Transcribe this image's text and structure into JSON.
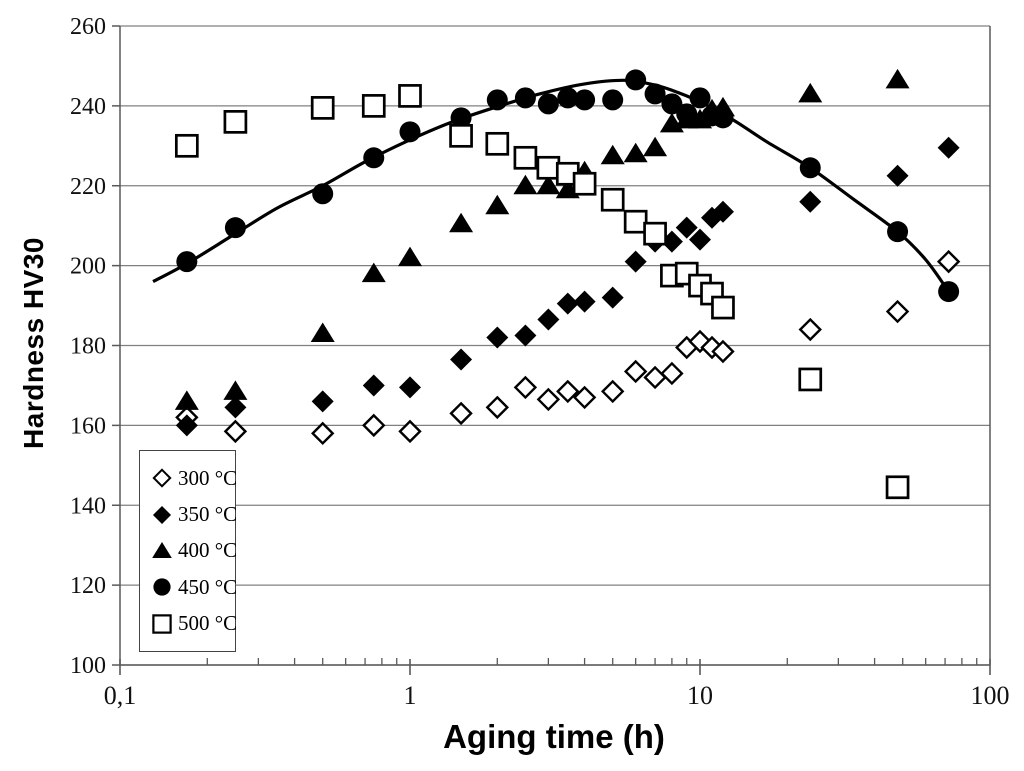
{
  "chart_data": {
    "type": "scatter",
    "title": "",
    "xlabel": "Aging time (h)",
    "ylabel": "Hardness HV30",
    "x_scale": "log",
    "x_range": [
      0.1,
      100
    ],
    "x_tick_values": [
      0.1,
      1,
      10,
      100
    ],
    "x_tick_labels": [
      "0,1",
      "1",
      "10",
      "100"
    ],
    "y_range": [
      100,
      260
    ],
    "y_tick_values": [
      100,
      120,
      140,
      160,
      180,
      200,
      220,
      240,
      260
    ],
    "y_tick_labels": [
      "100",
      "120",
      "140",
      "160",
      "180",
      "200",
      "220",
      "240",
      "260"
    ],
    "grid": "horizontal-only",
    "legend_position": "lower-left",
    "colors": {
      "marker": "#000000",
      "grid": "#808080",
      "axis": "#595959",
      "curve": "#000000",
      "background": "#ffffff"
    },
    "series": [
      {
        "name": "300 °C",
        "marker": "diamond-open",
        "points": [
          [
            0.17,
            162
          ],
          [
            0.25,
            158.5
          ],
          [
            0.5,
            158
          ],
          [
            0.75,
            160
          ],
          [
            1,
            158.5
          ],
          [
            1.5,
            163
          ],
          [
            2,
            164.5
          ],
          [
            2.5,
            169.5
          ],
          [
            3,
            166.5
          ],
          [
            3.5,
            168.5
          ],
          [
            4,
            167
          ],
          [
            5,
            168.5
          ],
          [
            6,
            173.5
          ],
          [
            7,
            172
          ],
          [
            8,
            173
          ],
          [
            9,
            179.5
          ],
          [
            10,
            181
          ],
          [
            11,
            179.5
          ],
          [
            12,
            178.5
          ],
          [
            24,
            184
          ],
          [
            48,
            188.5
          ],
          [
            72,
            201
          ]
        ]
      },
      {
        "name": "350 °C",
        "marker": "diamond-filled",
        "points": [
          [
            0.17,
            160
          ],
          [
            0.25,
            164.5
          ],
          [
            0.5,
            166
          ],
          [
            0.75,
            170
          ],
          [
            1,
            169.5
          ],
          [
            1.5,
            176.5
          ],
          [
            2,
            182
          ],
          [
            2.5,
            182.5
          ],
          [
            3,
            186.5
          ],
          [
            3.5,
            190.5
          ],
          [
            4,
            191
          ],
          [
            5,
            192
          ],
          [
            6,
            201
          ],
          [
            7,
            206
          ],
          [
            8,
            206
          ],
          [
            9,
            209.5
          ],
          [
            10,
            206.5
          ],
          [
            11,
            212
          ],
          [
            12,
            213.5
          ],
          [
            24,
            216
          ],
          [
            48,
            222.5
          ],
          [
            72,
            229.5
          ]
        ]
      },
      {
        "name": "400 °C",
        "marker": "triangle-filled",
        "points": [
          [
            0.17,
            166
          ],
          [
            0.25,
            168.5
          ],
          [
            0.5,
            183
          ],
          [
            0.75,
            198
          ],
          [
            1,
            202
          ],
          [
            1.5,
            210.5
          ],
          [
            2,
            215
          ],
          [
            2.5,
            220
          ],
          [
            3,
            220
          ],
          [
            3.5,
            219
          ],
          [
            4,
            223.5
          ],
          [
            5,
            227.5
          ],
          [
            6,
            228
          ],
          [
            7,
            229.5
          ],
          [
            8,
            235.5
          ],
          [
            9,
            236.5
          ],
          [
            10,
            236.5
          ],
          [
            11,
            239
          ],
          [
            12,
            239.5
          ],
          [
            24,
            243
          ],
          [
            48,
            246.5
          ]
        ]
      },
      {
        "name": "450 °C",
        "marker": "circle-filled",
        "points": [
          [
            0.17,
            201
          ],
          [
            0.25,
            209.5
          ],
          [
            0.5,
            218
          ],
          [
            0.75,
            227
          ],
          [
            1,
            233.5
          ],
          [
            1.5,
            237
          ],
          [
            2,
            241.5
          ],
          [
            2.5,
            242
          ],
          [
            3,
            240.5
          ],
          [
            3.5,
            242
          ],
          [
            4,
            241.5
          ],
          [
            5,
            241.5
          ],
          [
            6,
            246.5
          ],
          [
            7,
            243
          ],
          [
            8,
            240.5
          ],
          [
            9,
            238
          ],
          [
            10,
            242
          ],
          [
            11,
            237.5
          ],
          [
            12,
            237
          ],
          [
            24,
            224.5
          ],
          [
            48,
            208.5
          ],
          [
            72,
            193.5
          ]
        ]
      },
      {
        "name": "500 °C",
        "marker": "square-open",
        "points": [
          [
            0.17,
            230
          ],
          [
            0.25,
            236
          ],
          [
            0.5,
            239.5
          ],
          [
            0.75,
            240
          ],
          [
            1,
            242.5
          ],
          [
            1.5,
            232.5
          ],
          [
            2,
            230.5
          ],
          [
            2.5,
            227
          ],
          [
            3,
            224.5
          ],
          [
            3.5,
            223
          ],
          [
            4,
            220.5
          ],
          [
            5,
            216.5
          ],
          [
            6,
            211
          ],
          [
            7,
            208
          ],
          [
            8,
            197.5
          ],
          [
            9,
            198
          ],
          [
            10,
            195
          ],
          [
            11,
            193
          ],
          [
            12,
            189.5
          ],
          [
            24,
            171.5
          ],
          [
            48,
            144.5
          ]
        ]
      }
    ],
    "fit_curve": {
      "for_series": "450 °C",
      "points": [
        [
          0.13,
          196
        ],
        [
          0.17,
          200.5
        ],
        [
          0.25,
          208
        ],
        [
          0.35,
          214.5
        ],
        [
          0.5,
          220
        ],
        [
          0.7,
          226
        ],
        [
          1,
          231.5
        ],
        [
          1.4,
          236
        ],
        [
          2,
          239.8
        ],
        [
          2.8,
          243
        ],
        [
          4,
          245.5
        ],
        [
          5.5,
          246.4
        ],
        [
          7,
          245.2
        ],
        [
          8.5,
          243.2
        ],
        [
          10,
          241
        ],
        [
          13,
          236.5
        ],
        [
          17,
          231
        ],
        [
          24,
          224.5
        ],
        [
          34,
          216.5
        ],
        [
          48,
          208.5
        ],
        [
          60,
          201.5
        ],
        [
          72,
          193.5
        ]
      ]
    }
  }
}
